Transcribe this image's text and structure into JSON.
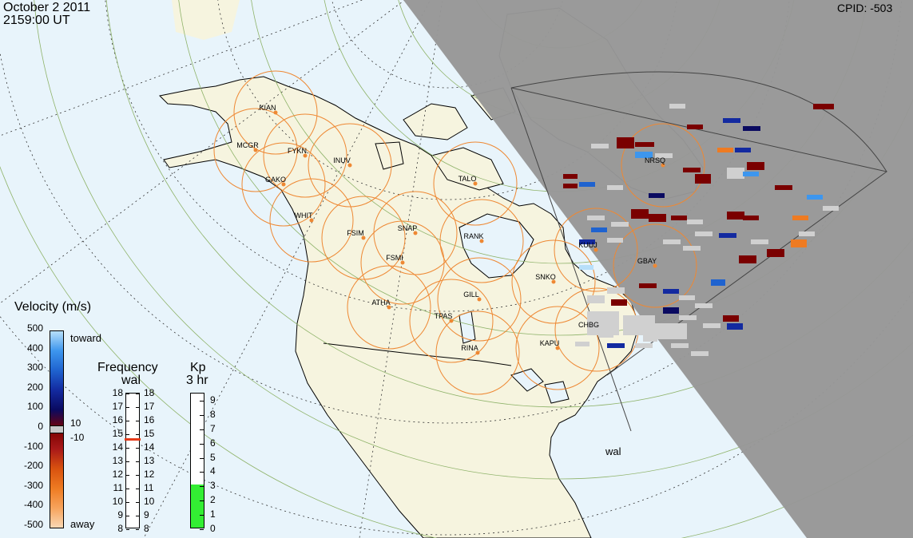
{
  "header": {
    "date": "October  2 2011",
    "time": "2159:00 UT",
    "cpid": "CPID:  -503"
  },
  "velocity_legend": {
    "title": "Velocity (m/s)",
    "toward": "toward",
    "away": "away",
    "ticks": [
      "500",
      "400",
      "300",
      "200",
      "100",
      "0",
      "-100",
      "-200",
      "-300",
      "-400",
      "-500"
    ],
    "ground_scatter_labels": [
      "10",
      "-10"
    ],
    "colors": [
      "#f9d8b4",
      "#f7a35c",
      "#ee7b22",
      "#d9520f",
      "#a91919",
      "#7a0000",
      "#0a0a60",
      "#132aa0",
      "#1f63cf",
      "#3d96ee",
      "#b7dffa"
    ]
  },
  "frequency_legend": {
    "title": "Frequency",
    "radar": "wal",
    "ticks": [
      "18",
      "17",
      "16",
      "15",
      "14",
      "13",
      "12",
      "11",
      "10",
      "9",
      "8"
    ],
    "current_value": 14.6,
    "marker_color": "#e63b1a"
  },
  "kp_legend": {
    "title": "Kp",
    "subtitle": "3 hr",
    "ticks": [
      "9",
      "8",
      "7",
      "6",
      "5",
      "4",
      "3",
      "2",
      "1",
      "0"
    ],
    "value": 3,
    "fill_color": "#33ee33"
  },
  "map": {
    "radar_label": "wal",
    "land_color": "#f6f4df",
    "ocean_color": "#e8f4fb",
    "night_color": "#979797",
    "circle_color": "#ee8833",
    "sites": [
      "KIAN",
      "MCGR",
      "FYKN",
      "INUV",
      "GAKO",
      "WHIT",
      "FSIM",
      "SNAP",
      "FSMI",
      "TALO",
      "RANK",
      "ATHA",
      "GILL",
      "TPAS",
      "RINA",
      "SNKO",
      "KAPU",
      "CHBG",
      "KUUJ",
      "GBAY",
      "NRSQ"
    ]
  }
}
